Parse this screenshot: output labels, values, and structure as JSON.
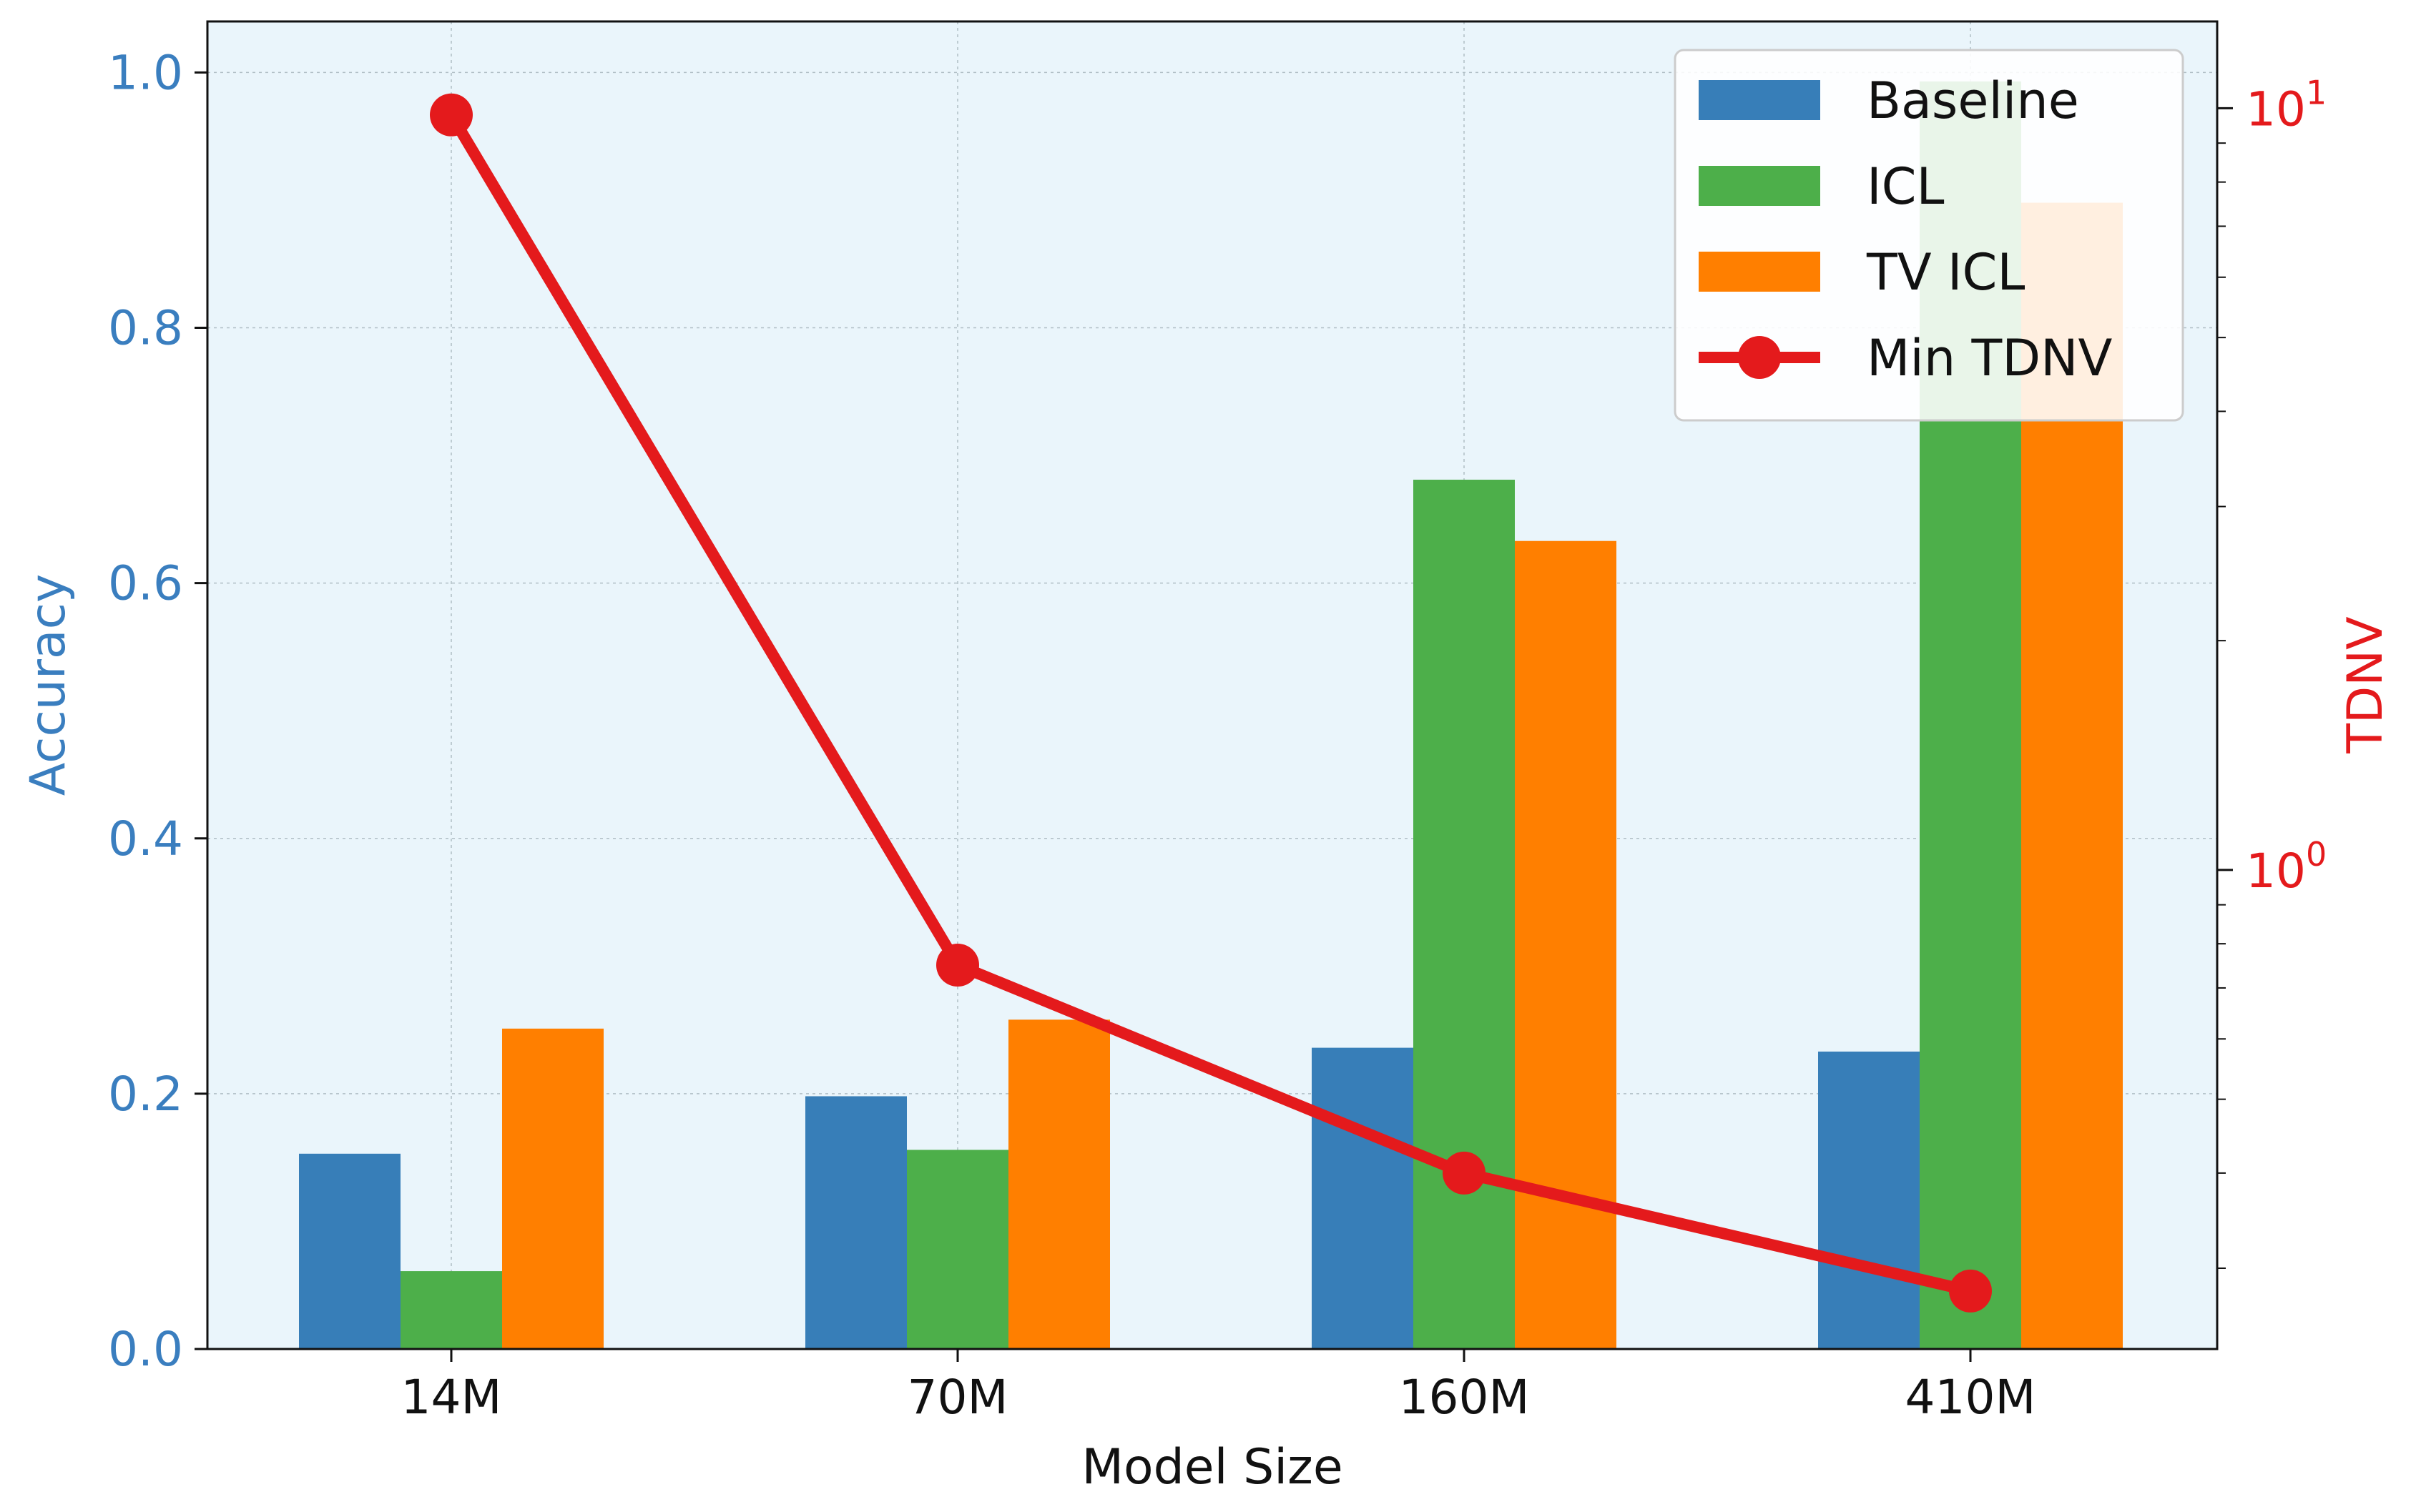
{
  "chart_data": {
    "type": "bar",
    "categories": [
      "14M",
      "70M",
      "160M",
      "410M"
    ],
    "series": [
      {
        "name": "Baseline",
        "kind": "bar",
        "axis": "left",
        "color": "#377eb8",
        "values": [
          0.153,
          0.198,
          0.236,
          0.233
        ]
      },
      {
        "name": "ICL",
        "kind": "bar",
        "axis": "left",
        "color": "#4daf4a",
        "values": [
          0.061,
          0.156,
          0.681,
          0.993
        ]
      },
      {
        "name": "TV ICL",
        "kind": "bar",
        "axis": "left",
        "color": "#ff7f00",
        "values": [
          0.251,
          0.258,
          0.633,
          0.898
        ]
      },
      {
        "name": "Min TDNV",
        "kind": "line",
        "axis": "right",
        "color": "#e41a1c",
        "values": [
          9.8,
          0.75,
          0.4,
          0.28
        ]
      }
    ],
    "xlabel": "Model Size",
    "ylabel": "Accuracy",
    "ylabel_right": "TDNV",
    "ylim": [
      0,
      1.04
    ],
    "ylim_right": [
      0.235,
      13.0
    ],
    "right_scale": "log",
    "yticks": [
      "0.0",
      "0.2",
      "0.4",
      "0.6",
      "0.8",
      "1.0"
    ],
    "yticks_right": [
      {
        "base": "10",
        "exp": "0",
        "value": 1
      },
      {
        "base": "10",
        "exp": "1",
        "value": 10
      }
    ],
    "grid": true,
    "legend": "top-right",
    "colors": {
      "background": "#eaf5fb",
      "left_axis": "#3a7ebf",
      "right_axis": "#e41a1c"
    }
  }
}
